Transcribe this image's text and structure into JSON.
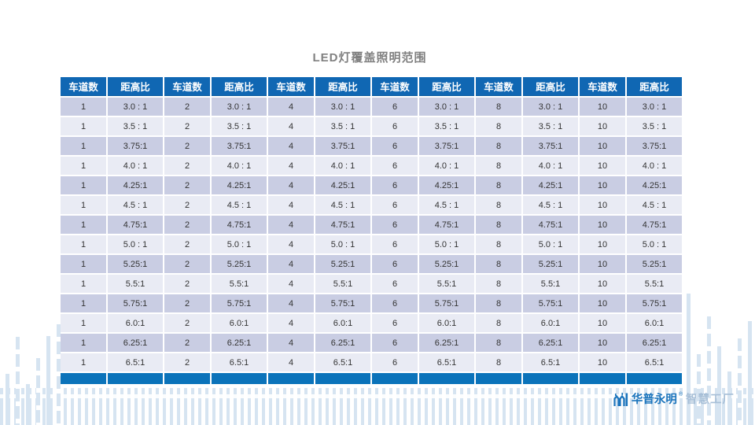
{
  "slide": {
    "title": "LED灯覆盖照明范围"
  },
  "table": {
    "column_headers": [
      "车道数",
      "距高比",
      "车道数",
      "距高比",
      "车道数",
      "距高比",
      "车道数",
      "距高比",
      "车道数",
      "距高比",
      "车道数",
      "距高比"
    ],
    "lane_counts": [
      "1",
      "2",
      "4",
      "6",
      "8",
      "10"
    ],
    "ratio_rows": [
      "3.0 : 1",
      "3.5 : 1",
      "3.75:1",
      "4.0 : 1",
      "4.25:1",
      "4.5 : 1",
      "4.75:1",
      "5.0 : 1",
      "5.25:1",
      "5.5:1",
      "5.75:1",
      "6.0:1",
      "6.25:1",
      "6.5:1"
    ]
  },
  "branding": {
    "brand_name": "华普永明",
    "registered_mark": "®",
    "brand_suffix": "智慧工厂"
  },
  "colors": {
    "header_bg": "#1067b3",
    "row_odd_bg": "#c9cde3",
    "row_even_bg": "#e9ebf4",
    "bottom_bar": "#0b73ba",
    "title_text": "#808080",
    "brand_blue": "#1b74bc",
    "brand_suffix_color": "#a7bfd7",
    "deco_bar": "#d6e4f1"
  }
}
